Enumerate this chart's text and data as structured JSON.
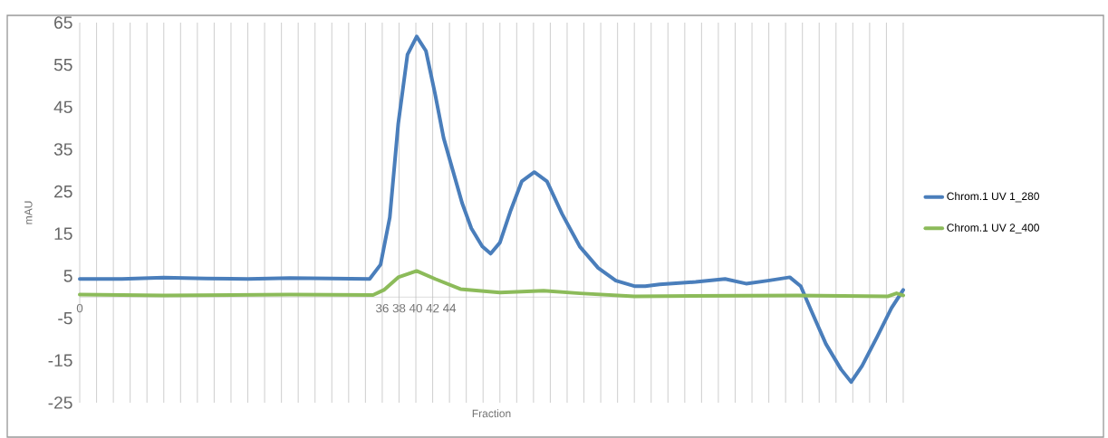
{
  "chart_data": {
    "type": "line",
    "xlabel": "Fraction",
    "ylabel": "mAU",
    "xlim": [
      0,
      98
    ],
    "ylim": [
      -25,
      65
    ],
    "xticks": [
      0,
      {
        "value": 2,
        "label": null
      },
      {
        "value": 4,
        "label": null
      },
      {
        "value": 6,
        "label": null
      },
      {
        "value": 8,
        "label": null
      },
      {
        "value": 10,
        "label": null
      },
      {
        "value": 12,
        "label": null
      },
      {
        "value": 14,
        "label": null
      },
      {
        "value": 16,
        "label": null
      },
      {
        "value": 18,
        "label": null
      },
      {
        "value": 20,
        "label": null
      },
      {
        "value": 22,
        "label": null
      },
      {
        "value": 24,
        "label": null
      },
      {
        "value": 26,
        "label": null
      },
      {
        "value": 28,
        "label": null
      },
      {
        "value": 30,
        "label": null
      },
      {
        "value": 32,
        "label": null
      },
      {
        "value": 34,
        "label": null
      },
      36,
      38,
      40,
      42,
      44,
      {
        "value": 46,
        "label": null
      },
      {
        "value": 48,
        "label": null
      },
      {
        "value": 50,
        "label": null
      },
      {
        "value": 52,
        "label": null
      },
      {
        "value": 54,
        "label": null
      },
      {
        "value": 56,
        "label": null
      },
      {
        "value": 58,
        "label": null
      },
      {
        "value": 60,
        "label": null
      },
      {
        "value": 62,
        "label": null
      },
      {
        "value": 64,
        "label": null
      },
      {
        "value": 66,
        "label": null
      },
      {
        "value": 68,
        "label": null
      },
      {
        "value": 70,
        "label": null
      },
      {
        "value": 72,
        "label": null
      },
      {
        "value": 74,
        "label": null
      },
      {
        "value": 76,
        "label": null
      },
      {
        "value": 78,
        "label": null
      },
      {
        "value": 80,
        "label": null
      },
      {
        "value": 82,
        "label": null
      },
      {
        "value": 84,
        "label": null
      },
      {
        "value": 86,
        "label": null
      },
      {
        "value": 88,
        "label": null
      },
      {
        "value": 90,
        "label": null
      },
      {
        "value": 92,
        "label": null
      },
      {
        "value": 94,
        "label": null
      },
      {
        "value": 96,
        "label": null
      },
      {
        "value": 98,
        "label": null
      }
    ],
    "yticks": [
      -25,
      -15,
      -5,
      5,
      15,
      25,
      35,
      45,
      55,
      65
    ],
    "grid": "x",
    "legend": "right",
    "marker": "none",
    "line_style": "solid",
    "series": [
      {
        "name": "Chrom.1 UV 1_280",
        "color": "#4a7ebb",
        "x": [
          0,
          5,
          10,
          15,
          20,
          25,
          30,
          34.5,
          35.8,
          36.9,
          37.9,
          39,
          40.1,
          41.2,
          42.3,
          43.3,
          44.4,
          45.5,
          46.6,
          47.9,
          48.9,
          50,
          51.3,
          52.6,
          54.1,
          55.6,
          57.4,
          59.5,
          61.7,
          63.8,
          66,
          67.3,
          69,
          73.3,
          76.8,
          79.3,
          81.9,
          84.5,
          85.8,
          87.1,
          88.8,
          90.6,
          91.8,
          93.1,
          94.9,
          96.6,
          98
        ],
        "values": [
          4.3,
          4.3,
          4.6,
          4.4,
          4.3,
          4.5,
          4.4,
          4.3,
          7.7,
          18.9,
          41,
          57.4,
          61.7,
          58.3,
          48,
          37.7,
          30,
          22.3,
          16.3,
          12,
          10.3,
          12.9,
          20.6,
          27.4,
          29.6,
          27.4,
          19.7,
          12,
          6.9,
          3.9,
          2.6,
          2.6,
          3,
          3.6,
          4.3,
          3.2,
          3.9,
          4.7,
          2.6,
          -3.4,
          -11.1,
          -17.1,
          -20.1,
          -16.3,
          -9.4,
          -2.6,
          1.7
        ]
      },
      {
        "name": "Chrom.1 UV 2_400",
        "color": "#8cbb5a",
        "x": [
          0,
          10,
          25,
          34.9,
          36.2,
          37.9,
          40.1,
          42.3,
          45.3,
          50,
          55.2,
          59.5,
          66,
          85.4,
          96.2,
          97.2,
          98
        ],
        "values": [
          0.6,
          0.4,
          0.6,
          0.5,
          1.7,
          4.7,
          6.2,
          4.3,
          1.9,
          1.1,
          1.5,
          0.9,
          0.2,
          0.4,
          0.2,
          0.9,
          0.4
        ]
      }
    ]
  }
}
